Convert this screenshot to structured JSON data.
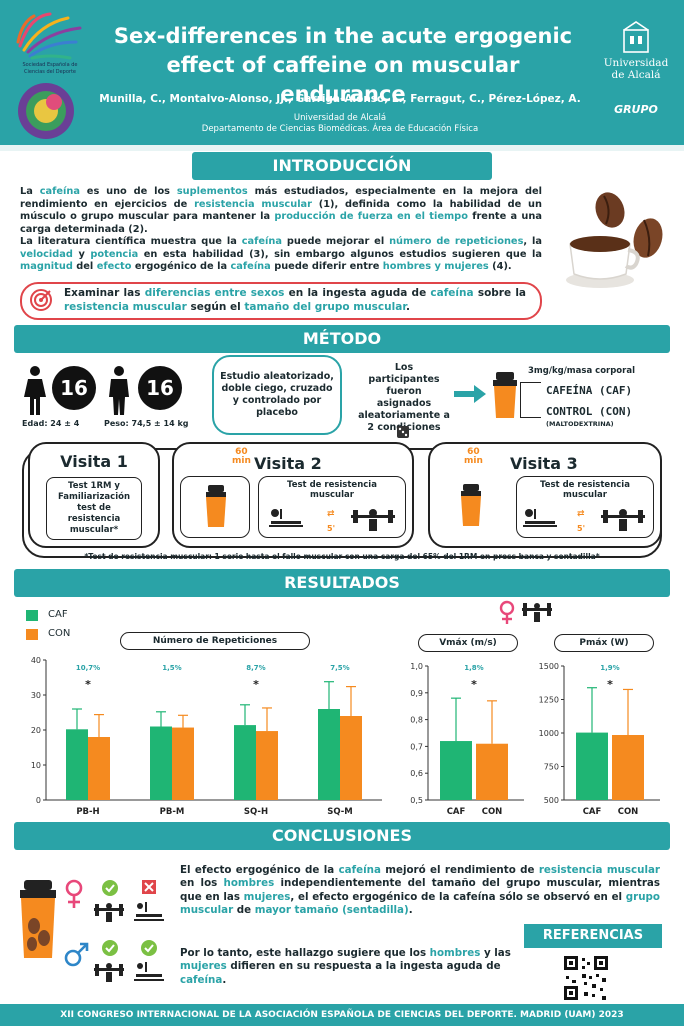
{
  "header": {
    "title_line1": "Sex-differences in the acute ergogenic",
    "title_line2": "effect of caffeine on muscular endurance",
    "authors": "Munilla, C., Montalvo-Alonso, JJ., Garriga-Alonso, L., Ferragut, C., Pérez-López, A.",
    "affil1": "Universidad de Alcalá",
    "affil2": "Departamento de Ciencias Biomédicas. Área de Educación Física",
    "left_logo_text1": "Sociedad Española de",
    "left_logo_text2": "Ciencias del Deporte",
    "right_logo_line1": "Universidad",
    "right_logo_line2": "de Alcalá",
    "right_logo_small": "GRUPO"
  },
  "intro": {
    "heading": "INTRODUCCIÓN",
    "p1": [
      {
        "t": "La ",
        "h": false
      },
      {
        "t": "cafeína",
        "h": true
      },
      {
        "t": " es uno de los ",
        "h": false
      },
      {
        "t": "suplementos",
        "h": true
      },
      {
        "t": " más estudiados, especialmente en la mejora del rendimiento en ejercicios de ",
        "h": false
      },
      {
        "t": "resistencia muscular",
        "h": true
      },
      {
        "t": " (1), definida como la habilidad de un músculo o grupo muscular para mantener la ",
        "h": false
      },
      {
        "t": "producción de fuerza en el tiempo",
        "h": true
      },
      {
        "t": " frente a una carga determinada (2).",
        "h": false
      }
    ],
    "p2": [
      {
        "t": "La literatura científica muestra que la ",
        "h": false
      },
      {
        "t": "cafeína",
        "h": true
      },
      {
        "t": " puede mejorar el ",
        "h": false
      },
      {
        "t": "número de repeticiones",
        "h": true
      },
      {
        "t": ", la ",
        "h": false
      },
      {
        "t": "velocidad",
        "h": true
      },
      {
        "t": " y ",
        "h": false
      },
      {
        "t": "potencia",
        "h": true
      },
      {
        "t": " en esta habilidad (3), sin embargo algunos estudios sugieren que la ",
        "h": false
      },
      {
        "t": "magnitud",
        "h": true
      },
      {
        "t": " del ",
        "h": false
      },
      {
        "t": "efecto",
        "h": true
      },
      {
        "t": " ergogénico de la ",
        "h": false
      },
      {
        "t": "cafeína",
        "h": true
      },
      {
        "t": " puede diferir entre ",
        "h": false
      },
      {
        "t": "hombres y mujeres",
        "h": true
      },
      {
        "t": " (4).",
        "h": false
      }
    ],
    "objective": [
      {
        "t": "Examinar las ",
        "h": false
      },
      {
        "t": "diferencias entre sexos",
        "h": true
      },
      {
        "t": " en la ingesta aguda de ",
        "h": false
      },
      {
        "t": "cafeína",
        "h": true
      },
      {
        "t": " sobre la ",
        "h": false
      },
      {
        "t": "resistencia muscular",
        "h": true
      },
      {
        "t": " según el ",
        "h": false
      },
      {
        "t": "tamaño del grupo muscular",
        "h": true
      },
      {
        "t": ".",
        "h": false
      }
    ]
  },
  "method": {
    "heading": "MÉTODO",
    "women_n": "16",
    "men_n": "16",
    "age": "Edad: 24 ± 4",
    "weight": "Peso: 74,5 ± 14 kg",
    "design": "Estudio aleatorizado, doble ciego, cruzado y controlado por placebo",
    "assignment": "Los participantes fueron asignados aleatoriamente a 2 condiciones",
    "dose": "3mg/kg/masa corporal",
    "caf": "CAFEÍNA (CAF)",
    "con": "CONTROL (CON)",
    "con_sub": "(MALTODEXTRINA)",
    "visit1_title": "Visita 1",
    "visit1_text": "Test 1RM y Familiarización test de resistencia muscular*",
    "visit2_title": "Visita 2",
    "visit3_title": "Visita 3",
    "minutes": "60",
    "min_label": "min",
    "test_label": "Test de resistencia muscular",
    "rest": "5'",
    "footnote": "*Test de resistencia muscular: 1 serie hasta el fallo muscular con una carga del 65% del 1RM en press banca y sentadilla*"
  },
  "results": {
    "heading": "RESULTADOS",
    "legend_caf": "CAF",
    "legend_con": "CON",
    "caf_color": "#1fb574",
    "con_color": "#f58a1f"
  },
  "chart_data": [
    {
      "type": "bar",
      "title": "Número de Repeticiones",
      "categories": [
        "PB-H",
        "PB-M",
        "SQ-H",
        "SQ-M"
      ],
      "series": [
        {
          "name": "CAF",
          "values": [
            20.2,
            21.0,
            21.4,
            26.0
          ],
          "errors": [
            5.8,
            4.2,
            5.8,
            7.8
          ]
        },
        {
          "name": "CON",
          "values": [
            18.0,
            20.7,
            19.7,
            24.0
          ],
          "errors": [
            6.4,
            3.5,
            6.6,
            8.4
          ]
        }
      ],
      "annotations": [
        "10,7%",
        "1,5%",
        "8,7%",
        "7,5%"
      ],
      "significant": [
        true,
        false,
        true,
        false
      ],
      "ylim": [
        0,
        40
      ],
      "yticks": [
        0,
        10,
        20,
        30,
        40
      ]
    },
    {
      "type": "bar",
      "title": "Vmáx (m/s)",
      "categories": [
        "CAF",
        "CON"
      ],
      "values": [
        0.72,
        0.71
      ],
      "errors": [
        0.16,
        0.16
      ],
      "annotations": [
        "1,8%"
      ],
      "significant": [
        true
      ],
      "ylim": [
        0.5,
        1.0
      ],
      "yticks": [
        0.5,
        0.6,
        0.7,
        0.8,
        0.9,
        1.0
      ],
      "ytick_labels": [
        "0,5",
        "0,6",
        "0,7",
        "0,8",
        "0,9",
        "1,0"
      ]
    },
    {
      "type": "bar",
      "title": "Pmáx (W)",
      "categories": [
        "CAF",
        "CON"
      ],
      "values": [
        1003,
        985
      ],
      "errors": [
        335,
        340
      ],
      "annotations": [
        "1,9%"
      ],
      "significant": [
        true
      ],
      "ylim": [
        500,
        1500
      ],
      "yticks": [
        500,
        750,
        1000,
        1250,
        1500
      ]
    }
  ],
  "conclusions": {
    "heading": "CONCLUSIONES",
    "p1": [
      {
        "t": "El efecto ergogénico de la ",
        "h": false
      },
      {
        "t": "cafeína",
        "h": true
      },
      {
        "t": " mejoró el rendimiento de ",
        "h": false
      },
      {
        "t": "resistencia muscular",
        "h": true
      },
      {
        "t": " en los ",
        "h": false
      },
      {
        "t": "hombres",
        "h": true
      },
      {
        "t": " independientemente del tamaño del grupo muscular, mientras que en las ",
        "h": false
      },
      {
        "t": "mujeres",
        "h": true
      },
      {
        "t": ", el efecto ergogénico de la cafeína sólo se observó en el ",
        "h": false
      },
      {
        "t": "grupo muscular",
        "h": true
      },
      {
        "t": " de ",
        "h": false
      },
      {
        "t": "mayor tamaño (sentadilla)",
        "h": true
      },
      {
        "t": ".",
        "h": false
      }
    ],
    "p2": [
      {
        "t": "Por lo tanto, este hallazgo sugiere que los ",
        "h": false
      },
      {
        "t": "hombres",
        "h": true
      },
      {
        "t": " y las ",
        "h": false
      },
      {
        "t": "mujeres",
        "h": true
      },
      {
        "t": " difieren en su respuesta a la ingesta aguda de ",
        "h": false
      },
      {
        "t": "cafeína",
        "h": true
      },
      {
        "t": ".",
        "h": false
      }
    ],
    "references": "REFERENCIAS"
  },
  "footer": "XII  CONGRESO INTERNACIONAL DE LA ASOCIACIÓN ESPAÑOLA DE CIENCIAS DEL DEPORTE. MADRID (UAM) 2023",
  "icons": [
    "logo-seccd",
    "logo-uah",
    "coffee-cup-icon",
    "coffee-bean-icon",
    "target-icon",
    "female-icon",
    "male-icon",
    "shaker-icon",
    "arrow-right-icon",
    "dice-icon",
    "bench-press-icon",
    "squat-icon",
    "check-icon",
    "cross-icon",
    "qr-code"
  ]
}
